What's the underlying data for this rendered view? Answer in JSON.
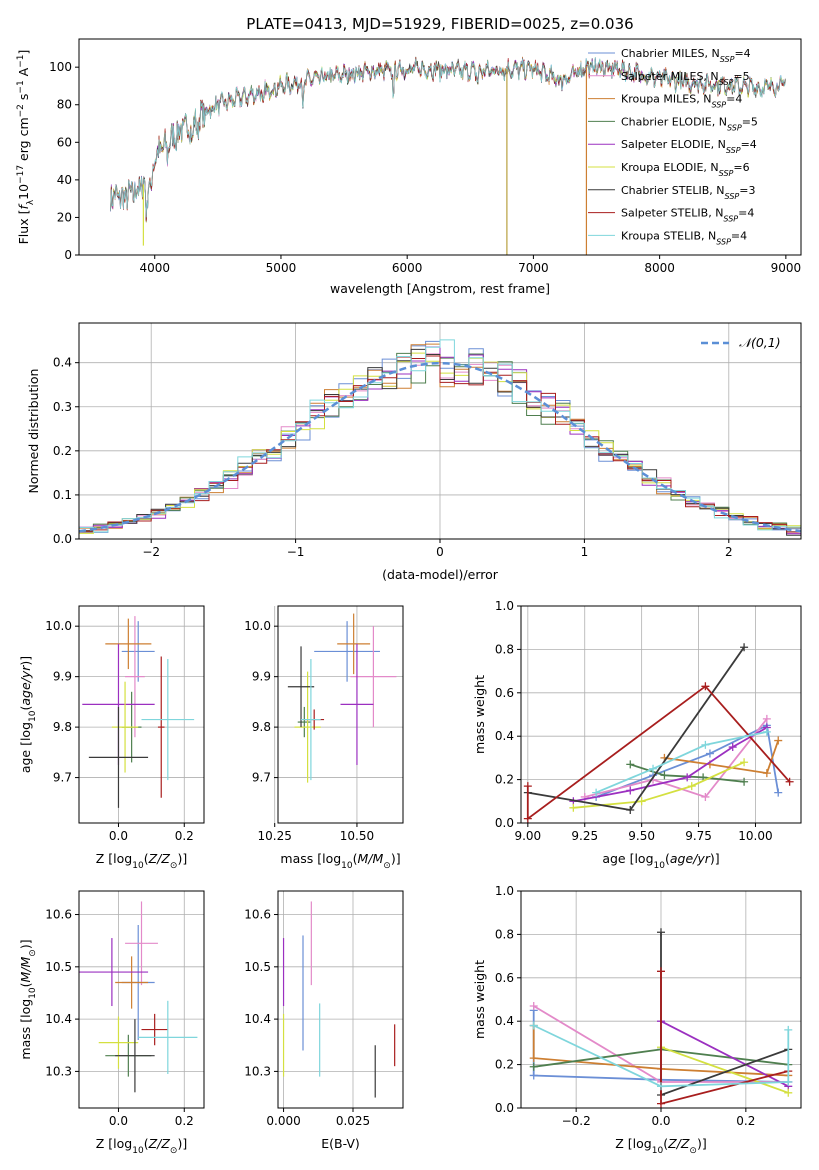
{
  "figure": {
    "title": "PLATE=0413, MJD=51929, FIBERID=0025, z=0.036"
  },
  "palette": {
    "Chabrier MILES": "#6b8fd6",
    "Salpeter MILES": "#e38ac9",
    "Kroupa MILES": "#cd7f32",
    "Chabrier ELODIE": "#4f7f4f",
    "Salpeter ELODIE": "#9b30c0",
    "Kroupa ELODIE": "#d4e040",
    "Chabrier STELIB": "#3a3a3a",
    "Salpeter STELIB": "#a81e1e",
    "Kroupa STELIB": "#7fd6dc"
  },
  "chart_data": [
    {
      "id": "spectrum",
      "type": "line",
      "title": "PLATE=0413, MJD=51929, FIBERID=0025, z=0.036",
      "xlabel": "wavelength [Angstrom, rest frame]",
      "ylabel": "Flux [f_λ10^-17 erg cm^-2 s^-1 A^-1]",
      "xlim": [
        3400,
        9120
      ],
      "ylim": [
        0,
        115
      ],
      "xticks": [
        4000,
        5000,
        6000,
        7000,
        8000,
        9000
      ],
      "yticks": [
        0,
        20,
        40,
        60,
        80,
        100
      ],
      "grid": false,
      "legend_position": "top-right",
      "series": [
        {
          "name": "Chabrier MILES, N_SSP=4"
        },
        {
          "name": "Salpeter MILES, N_SSP=5"
        },
        {
          "name": "Kroupa MILES, N_SSP=4"
        },
        {
          "name": "Chabrier ELODIE, N_SSP=5"
        },
        {
          "name": "Salpeter ELODIE, N_SSP=4"
        },
        {
          "name": "Kroupa ELODIE, N_SSP=6"
        },
        {
          "name": "Chabrier STELIB, N_SSP=3"
        },
        {
          "name": "Salpeter STELIB, N_SSP=4"
        },
        {
          "name": "Kroupa STELIB, N_SSP=4"
        }
      ],
      "continuum": {
        "x": [
          3650,
          3750,
          3850,
          3950,
          4000,
          4100,
          4200,
          4300,
          4400,
          4500,
          4600,
          4700,
          4800,
          4900,
          5000,
          5200,
          5400,
          5600,
          5800,
          6000,
          6200,
          6400,
          6600,
          6800,
          7000,
          7100,
          7200,
          7300,
          7400,
          7600,
          7800,
          8000,
          8200,
          8400,
          8600,
          8800,
          9000
        ],
        "y": [
          32,
          30,
          34,
          40,
          52,
          60,
          66,
          70,
          76,
          80,
          82,
          84,
          86,
          88,
          90,
          93,
          95,
          97,
          98,
          99,
          99,
          98,
          98,
          99,
          99,
          96,
          93,
          95,
          100,
          100,
          97,
          94,
          92,
          91,
          90,
          89,
          91
        ]
      },
      "spikes": [
        {
          "x": 3910,
          "y": 5
        },
        {
          "x": 6790,
          "y": 0
        },
        {
          "x": 7420,
          "y": 0
        }
      ]
    },
    {
      "id": "residuals",
      "type": "histogram",
      "xlabel": "(data-model)/error",
      "ylabel": "Normed distribution",
      "xlim": [
        -2.5,
        2.5
      ],
      "ylim": [
        0,
        0.49
      ],
      "xticks": [
        -2,
        -1,
        0,
        1,
        2
      ],
      "yticks": [
        0.0,
        0.1,
        0.2,
        0.3,
        0.4
      ],
      "grid": true,
      "bin_width": 0.1,
      "legend_position": "top-right",
      "reference_curve": {
        "name": "𝒩(0,1)",
        "mean": 0,
        "sigma": 1,
        "style": "dashed",
        "color": "#5b8fd6"
      }
    },
    {
      "id": "age_vs_Z",
      "type": "errorbar",
      "xlabel": "Z [log10(Z/Z⊙)]",
      "ylabel": "age [log10(age/yr)]",
      "xlim": [
        -0.12,
        0.26
      ],
      "ylim": [
        9.61,
        10.04
      ],
      "xticks": [
        0.0,
        0.2
      ],
      "yticks": [
        9.7,
        9.8,
        9.9,
        10.0
      ],
      "grid": true,
      "points": [
        {
          "model": "Chabrier MILES",
          "x": 0.06,
          "xerr": 0.05,
          "y": 9.95,
          "yerr": 0.06
        },
        {
          "model": "Salpeter MILES",
          "x": 0.05,
          "xerr": 0.03,
          "y": 9.9,
          "yerr": 0.12
        },
        {
          "model": "Kroupa MILES",
          "x": 0.03,
          "xerr": 0.07,
          "y": 9.965,
          "yerr": 0.05
        },
        {
          "model": "Chabrier ELODIE",
          "x": 0.04,
          "xerr": 0.03,
          "y": 9.8,
          "yerr": 0.07
        },
        {
          "model": "Salpeter ELODIE",
          "x": 0.0,
          "xerr": 0.11,
          "y": 9.845,
          "yerr": 0.12
        },
        {
          "model": "Kroupa ELODIE",
          "x": 0.02,
          "xerr": 0.04,
          "y": 9.8,
          "yerr": 0.09
        },
        {
          "model": "Chabrier STELIB",
          "x": 0.0,
          "xerr": 0.09,
          "y": 9.74,
          "yerr": 0.1
        },
        {
          "model": "Salpeter STELIB",
          "x": 0.13,
          "xerr": 0.01,
          "y": 9.8,
          "yerr": 0.14
        },
        {
          "model": "Kroupa STELIB",
          "x": 0.15,
          "xerr": 0.08,
          "y": 9.815,
          "yerr": 0.12
        }
      ]
    },
    {
      "id": "age_vs_mass",
      "type": "errorbar",
      "xlabel": "mass [log10(M/M⊙)]",
      "ylabel": "",
      "xlim": [
        10.26,
        10.64
      ],
      "ylim": [
        9.61,
        10.04
      ],
      "xticks": [
        10.25,
        10.5
      ],
      "yticks": [
        9.7,
        9.8,
        9.9,
        10.0
      ],
      "grid": true,
      "points": [
        {
          "model": "Chabrier MILES",
          "x": 10.47,
          "xerr": 0.1,
          "y": 9.95,
          "yerr": 0.06
        },
        {
          "model": "Salpeter MILES",
          "x": 10.55,
          "xerr": 0.07,
          "y": 9.9,
          "yerr": 0.1
        },
        {
          "model": "Kroupa MILES",
          "x": 10.49,
          "xerr": 0.05,
          "y": 9.965,
          "yerr": 0.06
        },
        {
          "model": "Chabrier ELODIE",
          "x": 10.34,
          "xerr": 0.02,
          "y": 9.81,
          "yerr": 0.03
        },
        {
          "model": "Salpeter ELODIE",
          "x": 10.5,
          "xerr": 0.05,
          "y": 9.845,
          "yerr": 0.12
        },
        {
          "model": "Kroupa ELODIE",
          "x": 10.35,
          "xerr": 0.04,
          "y": 9.8,
          "yerr": 0.11
        },
        {
          "model": "Chabrier STELIB",
          "x": 10.33,
          "xerr": 0.04,
          "y": 9.88,
          "yerr": 0.08
        },
        {
          "model": "Salpeter STELIB",
          "x": 10.37,
          "xerr": 0.03,
          "y": 9.815,
          "yerr": 0.02
        },
        {
          "model": "Kroupa STELIB",
          "x": 10.36,
          "xerr": 0.03,
          "y": 9.815,
          "yerr": 0.12
        }
      ]
    },
    {
      "id": "weight_vs_age",
      "type": "line",
      "xlabel": "age [log10(age/yr)]",
      "ylabel": "mass weight",
      "xlim": [
        8.97,
        10.2
      ],
      "ylim": [
        0,
        1
      ],
      "xticks": [
        9.0,
        9.25,
        9.5,
        9.75,
        10.0
      ],
      "yticks": [
        0.0,
        0.2,
        0.4,
        0.6,
        0.8,
        1.0
      ],
      "grid": true,
      "series": [
        {
          "model": "Chabrier MILES",
          "x": [
            9.3,
            9.55,
            9.8,
            10.05,
            10.1
          ],
          "y": [
            0.12,
            0.22,
            0.32,
            0.45,
            0.14
          ]
        },
        {
          "model": "Salpeter MILES",
          "x": [
            9.25,
            9.55,
            9.78,
            10.05
          ],
          "y": [
            0.12,
            0.2,
            0.12,
            0.48
          ]
        },
        {
          "model": "Kroupa MILES",
          "x": [
            9.6,
            9.8,
            10.05,
            10.1
          ],
          "y": [
            0.3,
            0.27,
            0.23,
            0.38
          ]
        },
        {
          "model": "Chabrier ELODIE",
          "x": [
            9.45,
            9.6,
            9.77,
            9.95
          ],
          "y": [
            0.27,
            0.22,
            0.21,
            0.19
          ]
        },
        {
          "model": "Salpeter ELODIE",
          "x": [
            9.2,
            9.45,
            9.7,
            9.9,
            10.05
          ],
          "y": [
            0.1,
            0.15,
            0.21,
            0.35,
            0.44
          ]
        },
        {
          "model": "Kroupa ELODIE",
          "x": [
            9.2,
            9.5,
            9.72,
            9.95
          ],
          "y": [
            0.07,
            0.1,
            0.17,
            0.28
          ]
        },
        {
          "model": "Chabrier STELIB",
          "x": [
            9.0,
            9.45,
            9.95
          ],
          "y": [
            0.14,
            0.06,
            0.81
          ]
        },
        {
          "model": "Salpeter STELIB",
          "x": [
            9.0,
            9.0,
            9.78,
            10.15
          ],
          "y": [
            0.17,
            0.02,
            0.63,
            0.19
          ]
        },
        {
          "model": "Kroupa STELIB",
          "x": [
            9.3,
            9.55,
            9.78,
            10.05
          ],
          "y": [
            0.14,
            0.25,
            0.36,
            0.42
          ]
        }
      ]
    },
    {
      "id": "mass_vs_Z",
      "type": "errorbar",
      "xlabel": "Z [log10(Z/Z⊙)]",
      "ylabel": "mass [log10(M/M⊙)]",
      "xlim": [
        -0.12,
        0.26
      ],
      "ylim": [
        10.23,
        10.645
      ],
      "xticks": [
        0.0,
        0.2
      ],
      "yticks": [
        10.3,
        10.4,
        10.5,
        10.6
      ],
      "grid": true,
      "points": [
        {
          "model": "Chabrier MILES",
          "x": 0.06,
          "xerr": 0.05,
          "y": 10.47,
          "yerr": 0.11
        },
        {
          "model": "Salpeter MILES",
          "x": 0.07,
          "xerr": 0.05,
          "y": 10.545,
          "yerr": 0.08
        },
        {
          "model": "Kroupa MILES",
          "x": 0.04,
          "xerr": 0.05,
          "y": 10.47,
          "yerr": 0.05
        },
        {
          "model": "Chabrier ELODIE",
          "x": 0.03,
          "xerr": 0.07,
          "y": 10.33,
          "yerr": 0.04
        },
        {
          "model": "Salpeter ELODIE",
          "x": -0.02,
          "xerr": 0.11,
          "y": 10.49,
          "yerr": 0.065
        },
        {
          "model": "Kroupa ELODIE",
          "x": 0.0,
          "xerr": 0.06,
          "y": 10.355,
          "yerr": 0.05
        },
        {
          "model": "Chabrier STELIB",
          "x": 0.05,
          "xerr": 0.06,
          "y": 10.33,
          "yerr": 0.07
        },
        {
          "model": "Salpeter STELIB",
          "x": 0.11,
          "xerr": 0.04,
          "y": 10.38,
          "yerr": 0.03
        },
        {
          "model": "Kroupa STELIB",
          "x": 0.15,
          "xerr": 0.09,
          "y": 10.365,
          "yerr": 0.07
        }
      ]
    },
    {
      "id": "mass_vs_EBV",
      "type": "errorbar",
      "xlabel": "E(B-V)",
      "ylabel": "",
      "xlim": [
        -0.002,
        0.043
      ],
      "ylim": [
        10.23,
        10.645
      ],
      "xticks": [
        0.0,
        0.025
      ],
      "yticks": [
        10.3,
        10.4,
        10.5,
        10.6
      ],
      "grid": true,
      "points": [
        {
          "model": "Chabrier MILES",
          "x": 0.007,
          "xerr": 0,
          "y": 10.45,
          "yerr": 0.11
        },
        {
          "model": "Salpeter MILES",
          "x": 0.01,
          "xerr": 0,
          "y": 10.545,
          "yerr": 0.08
        },
        {
          "model": "Salpeter ELODIE",
          "x": 0.0,
          "xerr": 0,
          "y": 10.49,
          "yerr": 0.065
        },
        {
          "model": "Kroupa ELODIE",
          "x": 0.0,
          "xerr": 0,
          "y": 10.35,
          "yerr": 0.06
        },
        {
          "model": "Kroupa STELIB",
          "x": 0.013,
          "xerr": 0,
          "y": 10.36,
          "yerr": 0.07
        },
        {
          "model": "Chabrier STELIB",
          "x": 0.033,
          "xerr": 0,
          "y": 10.3,
          "yerr": 0.05
        },
        {
          "model": "Salpeter STELIB",
          "x": 0.04,
          "xerr": 0,
          "y": 10.35,
          "yerr": 0.04
        }
      ]
    },
    {
      "id": "weight_vs_Z",
      "type": "line",
      "xlabel": "Z [log10(Z/Z⊙)]",
      "ylabel": "mass weight",
      "xlim": [
        -0.33,
        0.33
      ],
      "ylim": [
        0,
        1
      ],
      "xticks": [
        -0.2,
        0.0,
        0.2
      ],
      "yticks": [
        0.0,
        0.2,
        0.4,
        0.6,
        0.8,
        1.0
      ],
      "grid": true,
      "series": [
        {
          "model": "Chabrier MILES",
          "x": [
            -0.3,
            -0.3,
            0.0,
            0.3
          ],
          "y": [
            0.45,
            0.15,
            0.13,
            0.12
          ]
        },
        {
          "model": "Salpeter MILES",
          "x": [
            -0.3,
            0.0,
            0.3
          ],
          "y": [
            0.47,
            0.12,
            0.12
          ]
        },
        {
          "model": "Kroupa MILES",
          "x": [
            -0.3,
            -0.3,
            0.0,
            0.3
          ],
          "y": [
            0.38,
            0.23,
            0.18,
            0.15
          ]
        },
        {
          "model": "Chabrier ELODIE",
          "x": [
            -0.3,
            0.0,
            0.3
          ],
          "y": [
            0.19,
            0.27,
            0.2
          ]
        },
        {
          "model": "Salpeter ELODIE",
          "x": [
            0.0,
            0.3
          ],
          "y": [
            0.4,
            0.1
          ]
        },
        {
          "model": "Kroupa ELODIE",
          "x": [
            0.0,
            0.3
          ],
          "y": [
            0.28,
            0.07
          ]
        },
        {
          "model": "Chabrier STELIB",
          "x": [
            0.0,
            0.0,
            0.3
          ],
          "y": [
            0.81,
            0.06,
            0.27
          ]
        },
        {
          "model": "Salpeter STELIB",
          "x": [
            0.0,
            0.0,
            0.3
          ],
          "y": [
            0.63,
            0.02,
            0.17
          ]
        },
        {
          "model": "Kroupa STELIB",
          "x": [
            -0.3,
            0.0,
            0.3,
            0.3
          ],
          "y": [
            0.38,
            0.1,
            0.12,
            0.36
          ]
        }
      ]
    }
  ]
}
